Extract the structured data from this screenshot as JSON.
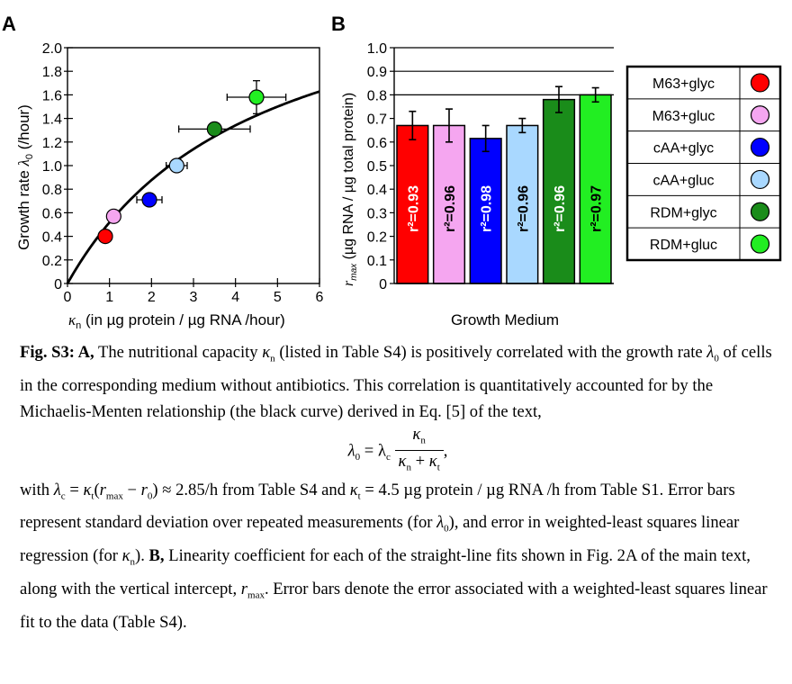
{
  "panel_a": {
    "letter": "A",
    "ylabel_prefix": "Growth rate ",
    "ylabel_sym": "λ",
    "ylabel_sub": "0",
    "ylabel_suffix": " (/hour)",
    "xlabel_sym": "κ",
    "xlabel_sub": "n",
    "xlabel_suffix": " (in µg protein / µg RNA /hour)",
    "y_ticks": [
      "0",
      "0.2",
      "0.4",
      "0.6",
      "0.8",
      "1.0",
      "1.2",
      "1.4",
      "1.6",
      "1.8",
      "2.0"
    ],
    "x_ticks": [
      "0",
      "1",
      "2",
      "3",
      "4",
      "5",
      "6"
    ]
  },
  "panel_b": {
    "letter": "B",
    "ylabel_sym": "r",
    "ylabel_sub": "max",
    "ylabel_suffix": " (µg RNA / µg total protein)",
    "xlabel": "Growth Medium",
    "y_ticks": [
      "0",
      "0.1",
      "0.2",
      "0.3",
      "0.4",
      "0.5",
      "0.6",
      "0.7",
      "0.8",
      "0.9",
      "1.0"
    ]
  },
  "legend": [
    {
      "label": "M63+glyc",
      "color": "#ff0000"
    },
    {
      "label": "M63+gluc",
      "color": "#f5a6f0"
    },
    {
      "label": "cAA+glyc",
      "color": "#0000ff"
    },
    {
      "label": "cAA+gluc",
      "color": "#a9d8ff"
    },
    {
      "label": "RDM+glyc",
      "color": "#1a8c1a"
    },
    {
      "label": "RDM+gluc",
      "color": "#22ee22"
    }
  ],
  "chart_data": [
    {
      "type": "scatter",
      "xlim": [
        0,
        6
      ],
      "ylim": [
        0,
        2.0
      ],
      "grid": false,
      "points": [
        {
          "medium": "M63+glyc",
          "x": 0.9,
          "y": 0.4,
          "xerr": 0.0,
          "yerr": 0.0,
          "color": "#ff0000"
        },
        {
          "medium": "M63+gluc",
          "x": 1.1,
          "y": 0.57,
          "xerr": 0.0,
          "yerr": 0.0,
          "color": "#f5a6f0"
        },
        {
          "medium": "cAA+glyc",
          "x": 1.95,
          "y": 0.71,
          "xerr": 0.3,
          "yerr": 0.0,
          "color": "#0000ff"
        },
        {
          "medium": "cAA+gluc",
          "x": 2.6,
          "y": 1.0,
          "xerr": 0.25,
          "yerr": 0.0,
          "color": "#a9d8ff"
        },
        {
          "medium": "RDM+glyc",
          "x": 3.5,
          "y": 1.31,
          "xerr": 0.85,
          "yerr": 0.04,
          "color": "#1a8c1a"
        },
        {
          "medium": "RDM+gluc",
          "x": 4.5,
          "y": 1.58,
          "xerr": 0.7,
          "yerr": 0.14,
          "color": "#22ee22"
        }
      ],
      "fit_curve": {
        "lambda_c": 2.85,
        "kappa_t": 4.5
      }
    },
    {
      "type": "bar",
      "ylim": [
        0,
        1.0
      ],
      "gridlines_y": [
        0.8,
        0.9,
        1.0
      ],
      "categories": [
        "M63+glyc",
        "M63+gluc",
        "cAA+glyc",
        "cAA+gluc",
        "RDM+glyc",
        "RDM+gluc"
      ],
      "values": [
        0.67,
        0.67,
        0.615,
        0.67,
        0.78,
        0.8
      ],
      "errors": [
        0.06,
        0.07,
        0.055,
        0.03,
        0.055,
        0.03
      ],
      "colors": [
        "#ff0000",
        "#f5a6f0",
        "#0000ff",
        "#a9d8ff",
        "#1a8c1a",
        "#22ee22"
      ],
      "bar_labels": [
        "r²=0.93",
        "r²=0.96",
        "r²=0.98",
        "r²=0.96",
        "r²=0.96",
        "r²=0.97"
      ]
    }
  ],
  "caption": {
    "fig_label": "Fig. S3: A,",
    "p1_a": " The nutritional capacity ",
    "p1_sym1": "κ",
    "p1_sub1": "n",
    "p1_b": " (listed in Table S4) is positively correlated with the growth rate ",
    "p1_sym2": "λ",
    "p1_sub2": "0",
    "p1_c": " of cells in the corresponding medium without antibiotics. This correlation is quantitatively accounted for by the Michaelis-Menten relationship (the black curve) derived in Eq. [5] of the text,",
    "eq_lhs": "λ",
    "eq_lhs_sub": "0",
    "eq_mid": " = λ",
    "eq_mid_sub": "c",
    "eq_num": "κ",
    "eq_num_sub": "n",
    "eq_den_a": "κ",
    "eq_den_a_sub": "n",
    "eq_den_plus": " + ",
    "eq_den_b": "κ",
    "eq_den_b_sub": "t",
    "eq_comma": ",",
    "p2_a": "with ",
    "p2_sym1": "λ",
    "p2_sub1": "c",
    "p2_b": " = ",
    "p2_sym2": "κ",
    "p2_sub2": "t",
    "p2_c": "(",
    "p2_sym3": "r",
    "p2_sub3": "max",
    "p2_d": " − ",
    "p2_sym4": "r",
    "p2_sub4": "0",
    "p2_e": ") ≈ 2.85/h  from Table S4 and ",
    "p2_sym5": "κ",
    "p2_sub5": "t",
    "p2_f": " = 4.5  µg protein / µg RNA /h from Table S1. Error bars represent standard deviation over repeated measurements (for ",
    "p2_sym6": "λ",
    "p2_sub6": "0",
    "p2_g": "), and error in weighted-least squares linear regression (for ",
    "p2_sym7": "κ",
    "p2_sub7": "n",
    "p2_h": "). ",
    "p2_bold": "B,",
    "p2_i": " Linearity coefficient for each of the straight-line fits shown in Fig. 2A of the main text, along with the vertical intercept, ",
    "p2_sym8": "r",
    "p2_sub8": "max",
    "p2_j": ". Error bars denote the error associated with a weighted-least squares linear fit to the data (Table S4)."
  }
}
